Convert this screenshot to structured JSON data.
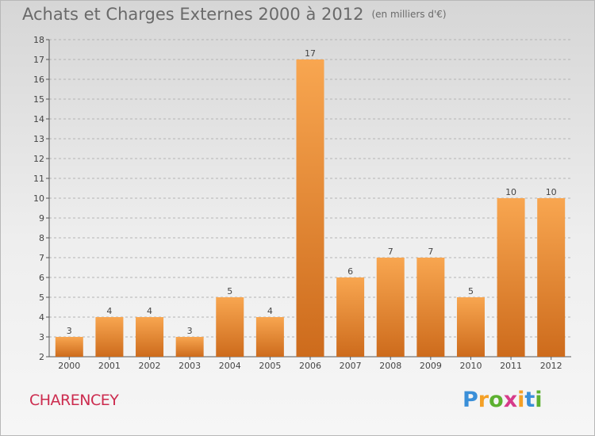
{
  "header": {
    "title": "Achats et Charges Externes 2000 à 2012",
    "unit": "(en milliers d'€)"
  },
  "footer": {
    "place": "CHARENCEY",
    "logo_letters": [
      "P",
      "r",
      "o",
      "x",
      "i",
      "t",
      "i"
    ],
    "logo_colors": [
      "#3a8fd8",
      "#f4a026",
      "#5cb030",
      "#d63a8a",
      "#f4a026",
      "#3a8fd8",
      "#5cb030"
    ]
  },
  "colors": {
    "bar_top": "#f8a650",
    "bar_bottom": "#cd6b1c",
    "axis": "#555555",
    "grid": "#b4b4b4",
    "text": "#444444"
  },
  "chart_data": {
    "type": "bar",
    "title": "Achats et Charges Externes 2000 à 2012",
    "subtitle": "(en milliers d'€)",
    "xlabel": "",
    "ylabel": "",
    "categories": [
      "2000",
      "2001",
      "2002",
      "2003",
      "2004",
      "2005",
      "2006",
      "2007",
      "2008",
      "2009",
      "2010",
      "2011",
      "2012"
    ],
    "values": [
      3,
      4,
      4,
      3,
      5,
      4,
      17,
      6,
      7,
      7,
      5,
      10,
      10
    ],
    "data_labels": [
      "3",
      "4",
      "4",
      "3",
      "5",
      "4",
      "17",
      "6",
      "7",
      "7",
      "5",
      "10",
      "10"
    ],
    "ylim": [
      2,
      18
    ],
    "yticks": [
      2,
      3,
      4,
      5,
      6,
      7,
      8,
      9,
      10,
      11,
      12,
      13,
      14,
      15,
      16,
      17,
      18
    ],
    "grid": true,
    "legend": false
  }
}
